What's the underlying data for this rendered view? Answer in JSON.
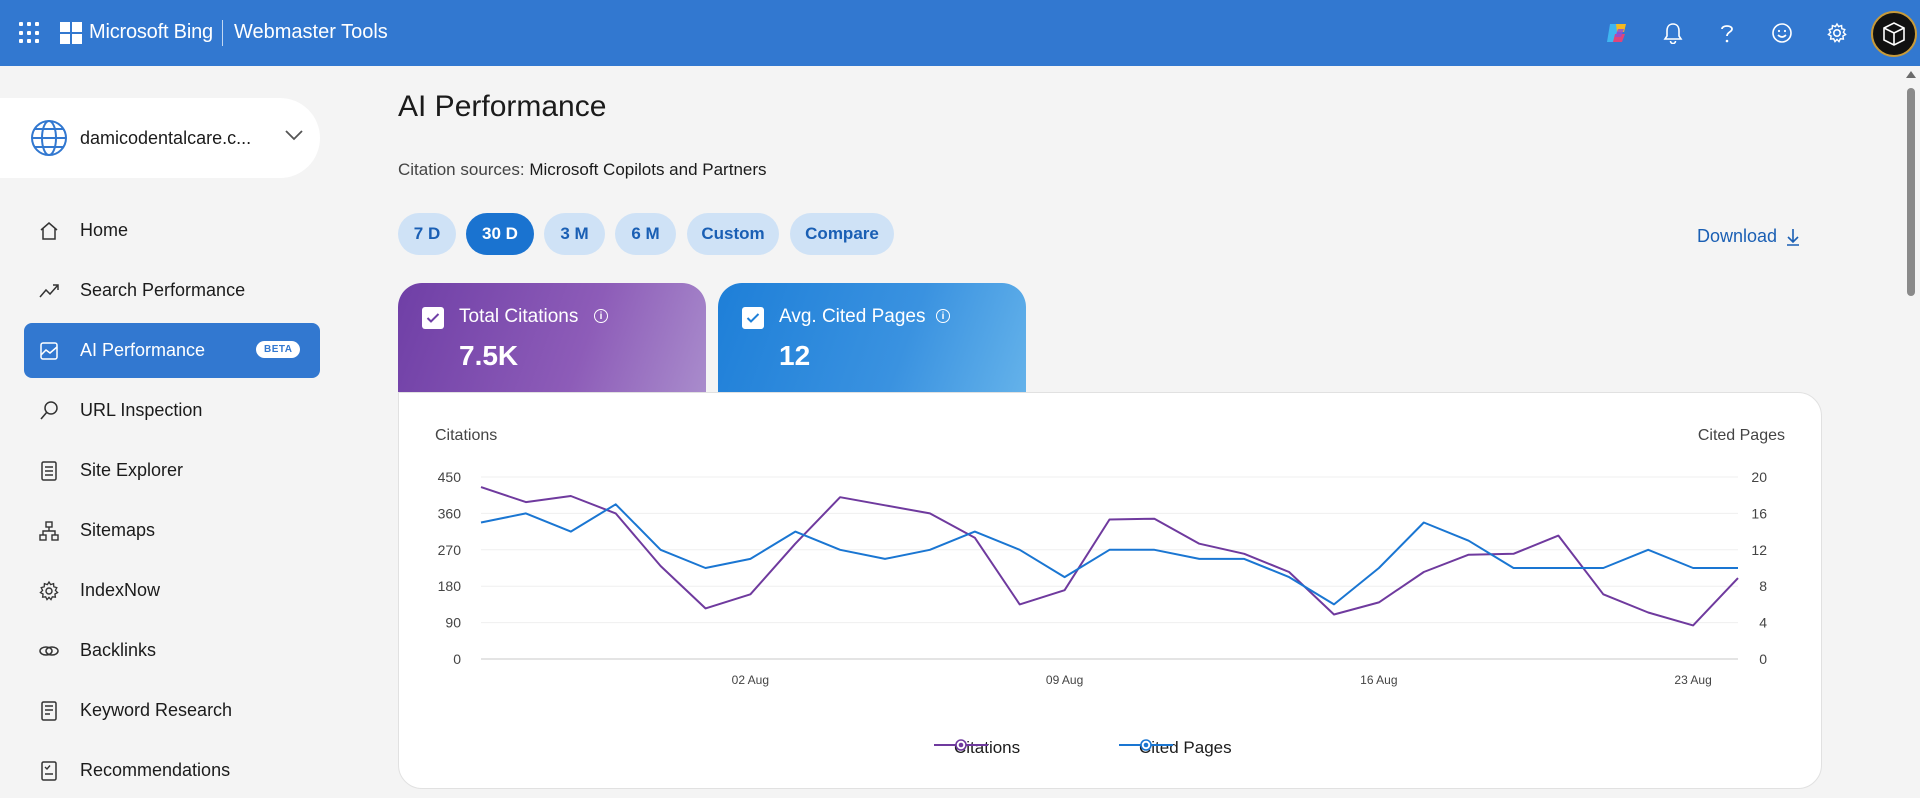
{
  "header": {
    "brand": "Microsoft Bing",
    "product": "Webmaster Tools",
    "icons": [
      "copilot-icon",
      "bell-icon",
      "help-icon",
      "feedback-smiley-icon",
      "gear-icon"
    ]
  },
  "sidebar": {
    "site": "damicodentalcare.c...",
    "items": [
      {
        "label": "Home",
        "icon": "home-icon"
      },
      {
        "label": "Search Performance",
        "icon": "trend-icon"
      },
      {
        "label": "AI Performance",
        "icon": "chart-image-icon",
        "badge": "BETA",
        "active": true
      },
      {
        "label": "URL Inspection",
        "icon": "search-icon"
      },
      {
        "label": "Site Explorer",
        "icon": "document-list-icon"
      },
      {
        "label": "Sitemaps",
        "icon": "sitemap-icon"
      },
      {
        "label": "IndexNow",
        "icon": "gear-icon"
      },
      {
        "label": "Backlinks",
        "icon": "link-icon"
      },
      {
        "label": "Keyword Research",
        "icon": "document-icon"
      },
      {
        "label": "Recommendations",
        "icon": "checklist-icon"
      }
    ]
  },
  "main": {
    "title": "AI Performance",
    "citation_label": "Citation sources:",
    "citation_value": "Microsoft Copilots and Partners",
    "ranges": [
      "7 D",
      "30 D",
      "3 M",
      "6 M",
      "Custom",
      "Compare"
    ],
    "active_range": "30 D",
    "download": "Download",
    "metrics": [
      {
        "label": "Total Citations",
        "value": "7.5K",
        "checked": true,
        "color": "#7a48ad"
      },
      {
        "label": "Avg. Cited Pages",
        "value": "12",
        "checked": true,
        "color": "#2b86dc"
      }
    ]
  },
  "chart_data": {
    "type": "line",
    "y_left_label": "Citations",
    "y_right_label": "Cited Pages",
    "y_left_ticks": [
      0,
      90,
      180,
      270,
      360,
      450
    ],
    "y_right_ticks": [
      0,
      4,
      8,
      12,
      16,
      20
    ],
    "ylim_left": [
      0,
      450
    ],
    "ylim_right": [
      0,
      20
    ],
    "x_tick_labels": [
      "02 Aug",
      "09 Aug",
      "16 Aug",
      "23 Aug"
    ],
    "x_tick_index": [
      6,
      13,
      20,
      27
    ],
    "series": [
      {
        "name": "Citations",
        "axis": "left",
        "color": "#6f3a9e",
        "values": [
          425,
          388,
          403,
          360,
          230,
          125,
          160,
          285,
          400,
          380,
          360,
          300,
          135,
          170,
          345,
          347,
          285,
          260,
          215,
          110,
          140,
          215,
          258,
          260,
          305,
          160,
          115,
          83,
          200
        ]
      },
      {
        "name": "Cited Pages",
        "axis": "right",
        "color": "#1a76d2",
        "values": [
          15,
          16,
          14,
          17,
          12,
          10,
          11,
          14,
          12,
          11,
          12,
          14,
          12,
          9,
          12,
          12,
          11,
          11,
          9,
          6,
          10,
          15,
          13,
          10,
          10,
          10,
          12,
          10,
          10
        ]
      }
    ]
  }
}
